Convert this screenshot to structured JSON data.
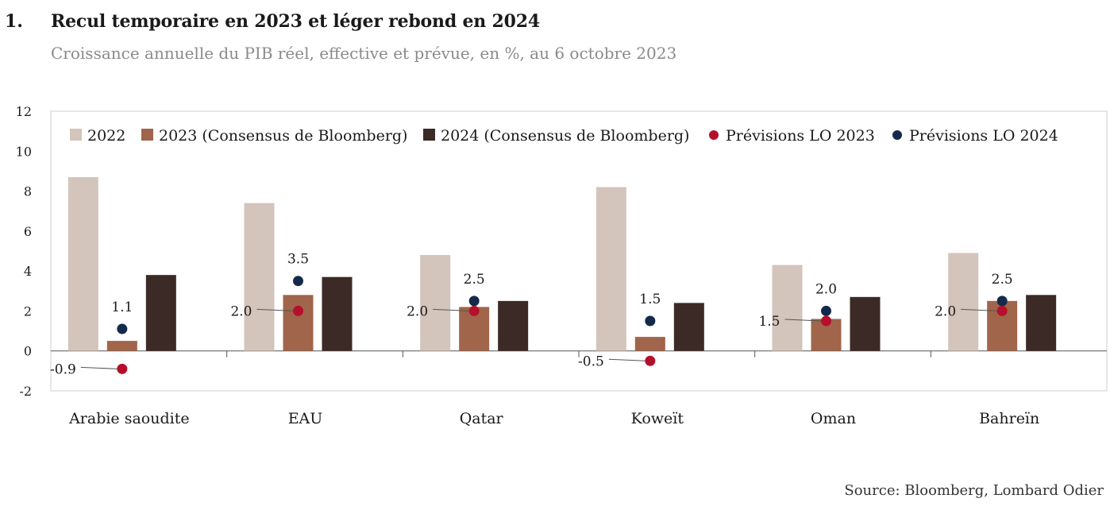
{
  "figure": {
    "number": "1.",
    "title": "Recul temporaire en 2023 et léger rebond en 2024",
    "subtitle": "Croissance annuelle du PIB réel, effective et prévue, en %, au 6 octobre 2023",
    "source": "Source: Bloomberg, Lombard Odier"
  },
  "chart_data": {
    "type": "bar",
    "categories": [
      "Arabie saoudite",
      "EAU",
      "Qatar",
      "Koweït",
      "Oman",
      "Bahreïn"
    ],
    "ylim": [
      -2,
      12
    ],
    "yticks": [
      -2,
      0,
      2,
      4,
      6,
      8,
      10,
      12
    ],
    "grid": false,
    "legend_position": "top",
    "series": [
      {
        "name": "2022",
        "kind": "bar",
        "color": "#d3c4bc",
        "values": [
          8.7,
          7.4,
          4.8,
          8.2,
          4.3,
          4.9
        ]
      },
      {
        "name": "2023 (Consensus de Bloomberg)",
        "kind": "bar",
        "color": "#a0654a",
        "values": [
          0.5,
          2.8,
          2.2,
          0.7,
          1.6,
          2.5
        ]
      },
      {
        "name": "2024 (Consensus de Bloomberg)",
        "kind": "bar",
        "color": "#3c2a26",
        "values": [
          3.8,
          3.7,
          2.5,
          2.4,
          2.7,
          2.8
        ]
      },
      {
        "name": "Prévisions LO 2023",
        "kind": "dot",
        "color": "#b4102c",
        "values": [
          -0.9,
          2.0,
          2.0,
          -0.5,
          1.5,
          2.0
        ],
        "labels": [
          "-0.9",
          "2.0",
          "2.0",
          "-0.5",
          "1.5",
          "2.0"
        ]
      },
      {
        "name": "Prévisions LO 2024",
        "kind": "dot",
        "color": "#132a4a",
        "values": [
          1.1,
          3.5,
          2.5,
          1.5,
          2.0,
          2.5
        ],
        "labels": [
          "1.1",
          "3.5",
          "2.5",
          "1.5",
          "2.0",
          "2.5"
        ]
      }
    ]
  }
}
